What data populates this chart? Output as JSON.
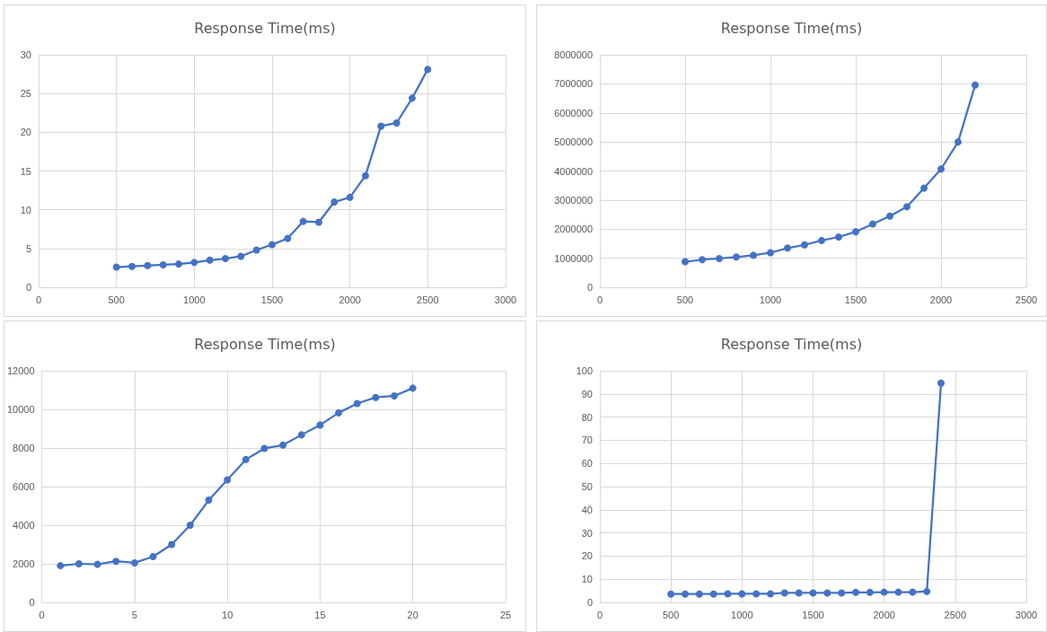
{
  "chart_data": [
    {
      "type": "line",
      "title": "Response Time(ms)",
      "x": [
        500,
        600,
        700,
        800,
        900,
        1000,
        1100,
        1200,
        1300,
        1400,
        1500,
        1600,
        1700,
        1800,
        1900,
        2000,
        2100,
        2200,
        2300,
        2400,
        2500
      ],
      "series": [
        {
          "color": "#4472c4",
          "values": [
            2.6,
            2.7,
            2.8,
            2.9,
            3.0,
            3.2,
            3.5,
            3.7,
            4.0,
            4.8,
            5.5,
            6.3,
            8.5,
            8.4,
            11,
            11.6,
            14.4,
            20.8,
            21.2,
            24.4,
            28.1
          ]
        }
      ],
      "xlim": [
        0,
        3000
      ],
      "xticks": [
        0,
        500,
        1000,
        1500,
        2000,
        2500,
        3000
      ],
      "ylim": [
        0,
        30
      ],
      "yticks": [
        0,
        5,
        10,
        15,
        20,
        25,
        30
      ],
      "grid": true,
      "marker": "circle"
    },
    {
      "type": "line",
      "title": "Response Time(ms)",
      "x": [
        500,
        600,
        700,
        800,
        900,
        1000,
        1100,
        1200,
        1300,
        1400,
        1500,
        1600,
        1700,
        1800,
        1900,
        2000,
        2100,
        2200
      ],
      "series": [
        {
          "color": "#4472c4",
          "values": [
            880000,
            950000,
            990000,
            1040000,
            1100000,
            1190000,
            1350000,
            1460000,
            1610000,
            1730000,
            1910000,
            2180000,
            2450000,
            2770000,
            3410000,
            4070000,
            5000000,
            6960000
          ]
        }
      ],
      "xlim": [
        0,
        2500
      ],
      "xticks": [
        0,
        500,
        1000,
        1500,
        2000,
        2500
      ],
      "ylim": [
        0,
        8000000
      ],
      "yticks": [
        0,
        1000000,
        2000000,
        3000000,
        4000000,
        5000000,
        6000000,
        7000000,
        8000000
      ],
      "grid": true,
      "marker": "circle"
    },
    {
      "type": "line",
      "title": "Response Time(ms)",
      "x": [
        1,
        2,
        3,
        4,
        5,
        6,
        7,
        8,
        9,
        10,
        11,
        12,
        13,
        14,
        15,
        16,
        17,
        18,
        19,
        20
      ],
      "series": [
        {
          "color": "#4472c4",
          "values": [
            1900,
            2000,
            1970,
            2130,
            2050,
            2370,
            3000,
            4000,
            5300,
            6350,
            7400,
            7980,
            8150,
            8680,
            9190,
            9820,
            10300,
            10620,
            10700,
            11100
          ]
        }
      ],
      "xlim": [
        0,
        25
      ],
      "xticks": [
        0,
        5,
        10,
        15,
        20,
        25
      ],
      "ylim": [
        0,
        12000
      ],
      "yticks": [
        0,
        2000,
        4000,
        6000,
        8000,
        10000,
        12000
      ],
      "grid": true,
      "marker": "circle"
    },
    {
      "type": "line",
      "title": "Response Time(ms)",
      "x": [
        500,
        600,
        700,
        800,
        900,
        1000,
        1100,
        1200,
        1300,
        1400,
        1500,
        1600,
        1700,
        1800,
        1900,
        2000,
        2100,
        2200,
        2300,
        2400
      ],
      "series": [
        {
          "color": "#4472c4",
          "values": [
            3.6,
            3.6,
            3.6,
            3.6,
            3.7,
            3.7,
            3.7,
            3.7,
            4.1,
            4.1,
            4.1,
            4.1,
            4.1,
            4.3,
            4.3,
            4.4,
            4.4,
            4.4,
            4.7,
            94.7
          ]
        }
      ],
      "xlim": [
        0,
        3000
      ],
      "xticks": [
        0,
        500,
        1000,
        1500,
        2000,
        2500,
        3000
      ],
      "ylim": [
        0,
        100
      ],
      "yticks": [
        0,
        10,
        20,
        30,
        40,
        50,
        60,
        70,
        80,
        90,
        100
      ],
      "grid": true,
      "marker": "circle"
    }
  ]
}
